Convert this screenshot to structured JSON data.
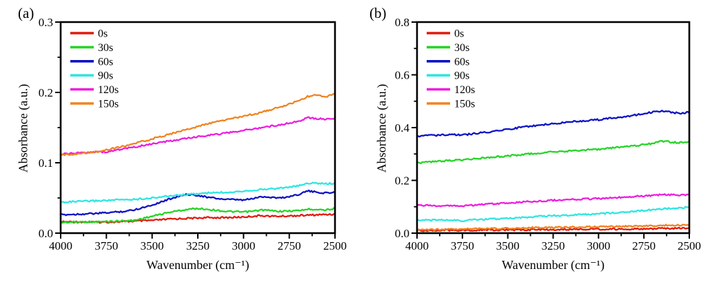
{
  "chart_data": [
    {
      "type": "line",
      "panel_label": "(a)",
      "xlabel": "Wavenumber (cm⁻¹)",
      "ylabel": "Absorbance (a.u.)",
      "x_axis": {
        "min": 2500,
        "max": 4000,
        "reversed": true,
        "tick_values": [
          4000,
          3750,
          3500,
          3250,
          3000,
          2750,
          2500
        ],
        "tick_labels": [
          "4000",
          "3750",
          "3500",
          "3250",
          "3000",
          "2750",
          "2500"
        ],
        "minor_ticks": "midpoint"
      },
      "y_axis": {
        "min": 0.0,
        "max": 0.3,
        "tick_values": [
          0.0,
          0.1,
          0.2,
          0.3
        ],
        "tick_labels": [
          "0.0",
          "0.1",
          "0.2",
          "0.3"
        ],
        "minor_ticks": "midpoint"
      },
      "legend": {
        "position": "top-left-inside"
      },
      "grid": false,
      "series": [
        {
          "name": "0s",
          "color": "#df1c0e",
          "points": [
            [
              4000,
              0.016
            ],
            [
              3900,
              0.016
            ],
            [
              3800,
              0.0155
            ],
            [
              3700,
              0.016
            ],
            [
              3600,
              0.017
            ],
            [
              3500,
              0.018
            ],
            [
              3400,
              0.02
            ],
            [
              3300,
              0.021
            ],
            [
              3200,
              0.022
            ],
            [
              3100,
              0.022
            ],
            [
              3000,
              0.023
            ],
            [
              2900,
              0.025
            ],
            [
              2850,
              0.024
            ],
            [
              2800,
              0.024
            ],
            [
              2700,
              0.025
            ],
            [
              2600,
              0.026
            ],
            [
              2500,
              0.027
            ]
          ]
        },
        {
          "name": "30s",
          "color": "#27d427",
          "points": [
            [
              4000,
              0.015
            ],
            [
              3900,
              0.016
            ],
            [
              3800,
              0.016
            ],
            [
              3700,
              0.017
            ],
            [
              3600,
              0.018
            ],
            [
              3500,
              0.024
            ],
            [
              3400,
              0.03
            ],
            [
              3300,
              0.034
            ],
            [
              3250,
              0.035
            ],
            [
              3200,
              0.034
            ],
            [
              3100,
              0.031
            ],
            [
              3000,
              0.03
            ],
            [
              2950,
              0.031
            ],
            [
              2900,
              0.033
            ],
            [
              2850,
              0.032
            ],
            [
              2800,
              0.031
            ],
            [
              2700,
              0.032
            ],
            [
              2650,
              0.034
            ],
            [
              2600,
              0.034
            ],
            [
              2550,
              0.033
            ],
            [
              2500,
              0.035
            ]
          ]
        },
        {
          "name": "60s",
          "color": "#0d12c4",
          "points": [
            [
              4000,
              0.026
            ],
            [
              3900,
              0.027
            ],
            [
              3800,
              0.028
            ],
            [
              3700,
              0.03
            ],
            [
              3650,
              0.031
            ],
            [
              3600,
              0.033
            ],
            [
              3500,
              0.04
            ],
            [
              3400,
              0.049
            ],
            [
              3350,
              0.053
            ],
            [
              3300,
              0.055
            ],
            [
              3250,
              0.054
            ],
            [
              3200,
              0.051
            ],
            [
              3100,
              0.048
            ],
            [
              3000,
              0.047
            ],
            [
              2950,
              0.049
            ],
            [
              2900,
              0.052
            ],
            [
              2850,
              0.051
            ],
            [
              2800,
              0.05
            ],
            [
              2750,
              0.052
            ],
            [
              2700,
              0.055
            ],
            [
              2650,
              0.06
            ],
            [
              2600,
              0.058
            ],
            [
              2550,
              0.057
            ],
            [
              2500,
              0.058
            ]
          ]
        },
        {
          "name": "90s",
          "color": "#30e6e2",
          "points": [
            [
              4000,
              0.044
            ],
            [
              3900,
              0.045
            ],
            [
              3800,
              0.046
            ],
            [
              3700,
              0.047
            ],
            [
              3600,
              0.048
            ],
            [
              3500,
              0.05
            ],
            [
              3400,
              0.053
            ],
            [
              3300,
              0.055
            ],
            [
              3200,
              0.057
            ],
            [
              3100,
              0.058
            ],
            [
              3000,
              0.06
            ],
            [
              2900,
              0.062
            ],
            [
              2800,
              0.064
            ],
            [
              2700,
              0.067
            ],
            [
              2650,
              0.071
            ],
            [
              2600,
              0.071
            ],
            [
              2550,
              0.07
            ],
            [
              2500,
              0.071
            ]
          ]
        },
        {
          "name": "120s",
          "color": "#eb1fdf",
          "points": [
            [
              4000,
              0.112
            ],
            [
              3900,
              0.114
            ],
            [
              3800,
              0.116
            ],
            [
              3750,
              0.115
            ],
            [
              3700,
              0.118
            ],
            [
              3600,
              0.122
            ],
            [
              3500,
              0.127
            ],
            [
              3400,
              0.131
            ],
            [
              3300,
              0.135
            ],
            [
              3200,
              0.139
            ],
            [
              3100,
              0.142
            ],
            [
              3000,
              0.146
            ],
            [
              2900,
              0.15
            ],
            [
              2800,
              0.154
            ],
            [
              2700,
              0.159
            ],
            [
              2650,
              0.164
            ],
            [
              2600,
              0.163
            ],
            [
              2550,
              0.162
            ],
            [
              2500,
              0.163
            ]
          ]
        },
        {
          "name": "150s",
          "color": "#ef8422",
          "points": [
            [
              4000,
              0.111
            ],
            [
              3900,
              0.113
            ],
            [
              3800,
              0.116
            ],
            [
              3700,
              0.121
            ],
            [
              3600,
              0.127
            ],
            [
              3500,
              0.134
            ],
            [
              3400,
              0.141
            ],
            [
              3300,
              0.148
            ],
            [
              3200,
              0.155
            ],
            [
              3100,
              0.161
            ],
            [
              3000,
              0.166
            ],
            [
              2900,
              0.172
            ],
            [
              2800,
              0.179
            ],
            [
              2700,
              0.188
            ],
            [
              2650,
              0.194
            ],
            [
              2600,
              0.196
            ],
            [
              2550,
              0.194
            ],
            [
              2500,
              0.198
            ]
          ]
        }
      ]
    },
    {
      "type": "line",
      "panel_label": "(b)",
      "xlabel": "Wavenumber (cm⁻¹)",
      "ylabel": "Absorbance (a.u.)",
      "x_axis": {
        "min": 2500,
        "max": 4000,
        "reversed": true,
        "tick_values": [
          4000,
          3750,
          3500,
          3250,
          3000,
          2750,
          2500
        ],
        "tick_labels": [
          "4000",
          "3750",
          "3500",
          "3250",
          "3000",
          "2750",
          "2500"
        ],
        "minor_ticks": "midpoint"
      },
      "y_axis": {
        "min": 0.0,
        "max": 0.8,
        "tick_values": [
          0.0,
          0.2,
          0.4,
          0.6,
          0.8
        ],
        "tick_labels": [
          "0.0",
          "0.2",
          "0.4",
          "0.6",
          "0.8"
        ],
        "minor_ticks": "midpoint"
      },
      "legend": {
        "position": "top-left-inside"
      },
      "grid": false,
      "series": [
        {
          "name": "0s",
          "color": "#df1c0e",
          "points": [
            [
              4000,
              0.01
            ],
            [
              3800,
              0.011
            ],
            [
              3600,
              0.012
            ],
            [
              3400,
              0.013
            ],
            [
              3200,
              0.014
            ],
            [
              3000,
              0.015
            ],
            [
              2800,
              0.016
            ],
            [
              2600,
              0.018
            ],
            [
              2500,
              0.02
            ]
          ]
        },
        {
          "name": "30s",
          "color": "#27d427",
          "points": [
            [
              4000,
              0.266
            ],
            [
              3900,
              0.271
            ],
            [
              3800,
              0.276
            ],
            [
              3700,
              0.281
            ],
            [
              3600,
              0.287
            ],
            [
              3500,
              0.293
            ],
            [
              3400,
              0.299
            ],
            [
              3300,
              0.305
            ],
            [
              3200,
              0.31
            ],
            [
              3100,
              0.314
            ],
            [
              3000,
              0.318
            ],
            [
              2900,
              0.325
            ],
            [
              2800,
              0.331
            ],
            [
              2700,
              0.34
            ],
            [
              2650,
              0.349
            ],
            [
              2600,
              0.345
            ],
            [
              2550,
              0.343
            ],
            [
              2500,
              0.346
            ]
          ]
        },
        {
          "name": "60s",
          "color": "#0d12c4",
          "points": [
            [
              4000,
              0.368
            ],
            [
              3900,
              0.371
            ],
            [
              3800,
              0.373
            ],
            [
              3750,
              0.371
            ],
            [
              3700,
              0.376
            ],
            [
              3600,
              0.384
            ],
            [
              3500,
              0.394
            ],
            [
              3400,
              0.403
            ],
            [
              3300,
              0.411
            ],
            [
              3200,
              0.419
            ],
            [
              3100,
              0.425
            ],
            [
              3000,
              0.43
            ],
            [
              2900,
              0.438
            ],
            [
              2800,
              0.447
            ],
            [
              2700,
              0.459
            ],
            [
              2650,
              0.464
            ],
            [
              2600,
              0.457
            ],
            [
              2550,
              0.455
            ],
            [
              2500,
              0.458
            ]
          ]
        },
        {
          "name": "90s",
          "color": "#30e6e2",
          "points": [
            [
              4000,
              0.05
            ],
            [
              3900,
              0.049
            ],
            [
              3800,
              0.049
            ],
            [
              3750,
              0.046
            ],
            [
              3700,
              0.05
            ],
            [
              3600,
              0.053
            ],
            [
              3500,
              0.056
            ],
            [
              3400,
              0.06
            ],
            [
              3300,
              0.064
            ],
            [
              3200,
              0.067
            ],
            [
              3100,
              0.07
            ],
            [
              3000,
              0.073
            ],
            [
              2900,
              0.078
            ],
            [
              2800,
              0.083
            ],
            [
              2700,
              0.089
            ],
            [
              2600,
              0.094
            ],
            [
              2500,
              0.098
            ]
          ]
        },
        {
          "name": "120s",
          "color": "#eb1fdf",
          "points": [
            [
              4000,
              0.105
            ],
            [
              3900,
              0.104
            ],
            [
              3800,
              0.105
            ],
            [
              3750,
              0.102
            ],
            [
              3700,
              0.106
            ],
            [
              3600,
              0.11
            ],
            [
              3500,
              0.114
            ],
            [
              3400,
              0.119
            ],
            [
              3300,
              0.123
            ],
            [
              3200,
              0.126
            ],
            [
              3100,
              0.129
            ],
            [
              3000,
              0.131
            ],
            [
              2900,
              0.135
            ],
            [
              2800,
              0.139
            ],
            [
              2700,
              0.143
            ],
            [
              2650,
              0.147
            ],
            [
              2600,
              0.145
            ],
            [
              2550,
              0.144
            ],
            [
              2500,
              0.146
            ]
          ]
        },
        {
          "name": "150s",
          "color": "#ef8422",
          "points": [
            [
              4000,
              0.013
            ],
            [
              3900,
              0.014
            ],
            [
              3800,
              0.015
            ],
            [
              3700,
              0.016
            ],
            [
              3600,
              0.017
            ],
            [
              3500,
              0.018
            ],
            [
              3400,
              0.02
            ],
            [
              3300,
              0.021
            ],
            [
              3200,
              0.022
            ],
            [
              3100,
              0.023
            ],
            [
              3000,
              0.024
            ],
            [
              2900,
              0.025
            ],
            [
              2800,
              0.026
            ],
            [
              2700,
              0.028
            ],
            [
              2600,
              0.03
            ],
            [
              2500,
              0.03
            ]
          ]
        }
      ]
    }
  ]
}
